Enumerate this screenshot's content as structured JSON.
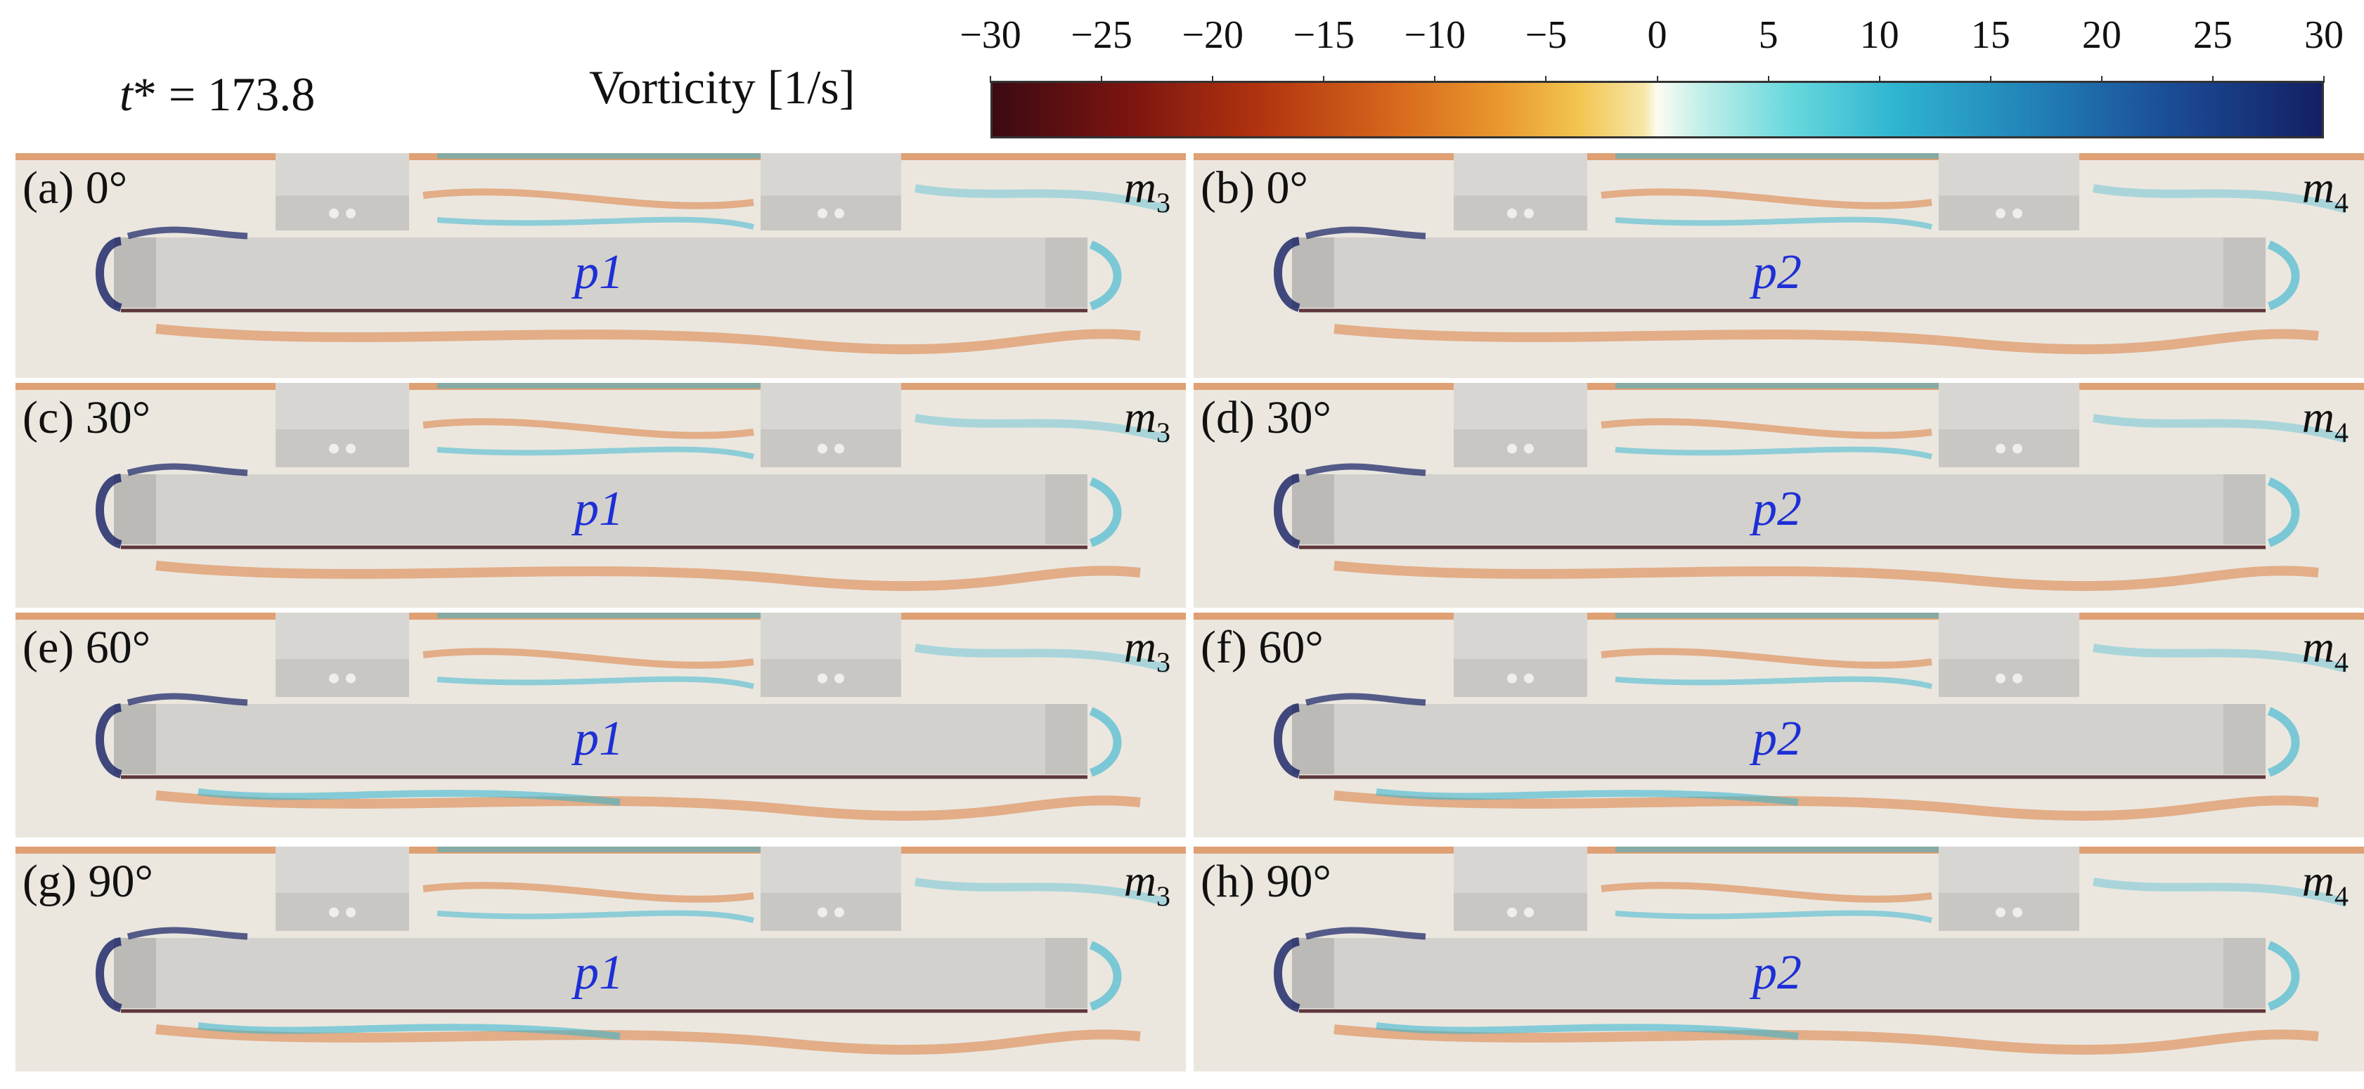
{
  "header": {
    "time_label_italic": "t",
    "time_label_rest": "* = 173.8"
  },
  "colorbar": {
    "title": "Vorticity [1/s]",
    "ticks": [
      "−30",
      "−25",
      "−20",
      "−15",
      "−10",
      "−5",
      "0",
      "5",
      "10",
      "15",
      "20",
      "25",
      "30"
    ],
    "range": [
      -30,
      30
    ],
    "colors": {
      "negative_max": "#3b0a12",
      "negative_mid": "#d6661c",
      "zero": "#fdfbf2",
      "positive_mid": "#2fb4d0",
      "positive_max": "#141f63"
    }
  },
  "panels": [
    {
      "label": "(a) 0°",
      "model": "m",
      "model_sub": "3",
      "body": "p1"
    },
    {
      "label": "(b) 0°",
      "model": "m",
      "model_sub": "4",
      "body": "p2"
    },
    {
      "label": "(c) 30°",
      "model": "m",
      "model_sub": "3",
      "body": "p1"
    },
    {
      "label": "(d) 30°",
      "model": "m",
      "model_sub": "4",
      "body": "p2"
    },
    {
      "label": "(e) 60°",
      "model": "m",
      "model_sub": "3",
      "body": "p1"
    },
    {
      "label": "(f) 60°",
      "model": "m",
      "model_sub": "4",
      "body": "p2"
    },
    {
      "label": "(g) 90°",
      "model": "m",
      "model_sub": "3",
      "body": "p1"
    },
    {
      "label": "(h) 90°",
      "model": "m",
      "model_sub": "4",
      "body": "p2"
    }
  ]
}
